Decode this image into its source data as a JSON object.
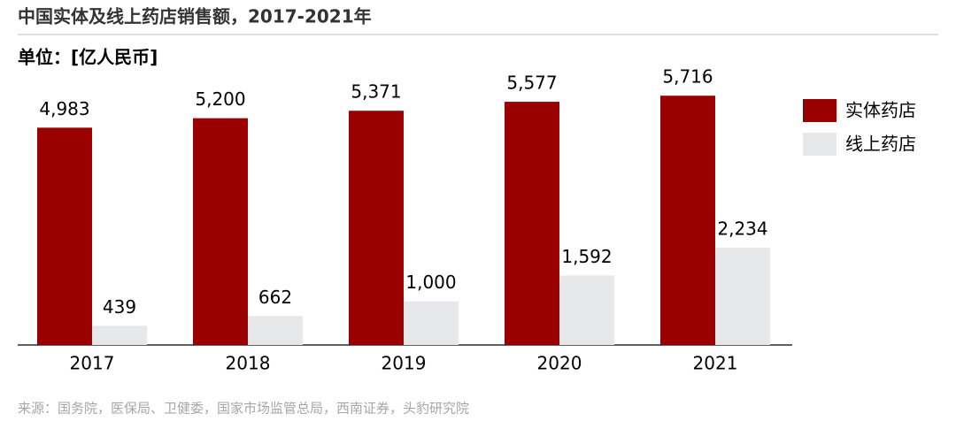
{
  "chart_data": {
    "type": "bar",
    "title": "中国实体及线上药店销售额，2017-2021年",
    "subtitle": "单位：[亿人民币]",
    "categories": [
      "2017",
      "2018",
      "2019",
      "2020",
      "2021"
    ],
    "series": [
      {
        "name": "实体药店",
        "color": "#9b0000",
        "values": [
          4983,
          5200,
          5371,
          5577,
          5716
        ],
        "value_labels": [
          "4,983",
          "5,200",
          "5,371",
          "5,577",
          "5,716"
        ]
      },
      {
        "name": "线上药店",
        "color": "#e6e7e8",
        "values": [
          439,
          662,
          1000,
          1592,
          2234
        ],
        "value_labels": [
          "439",
          "662",
          "1,000",
          "1,592",
          "2,234"
        ]
      }
    ],
    "legend": "right",
    "source": "来源：国务院，医保局、卫健委，国家市场监管总局，西南证券，头豹研究院"
  }
}
